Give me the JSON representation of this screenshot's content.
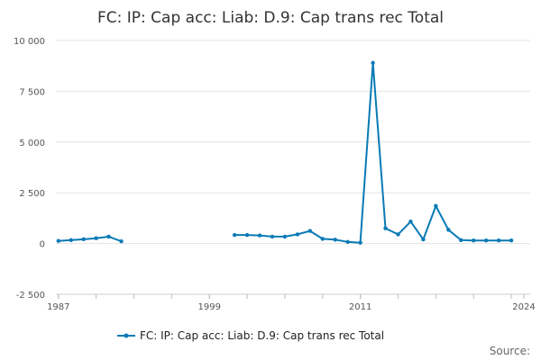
{
  "chart_data": {
    "type": "line",
    "title": "FC: IP: Cap acc: Liab: D.9: Cap trans rec Total",
    "xlabel": "",
    "ylabel": "",
    "xlim": [
      1986.8,
      2024.5
    ],
    "ylim": [
      -2500,
      10000
    ],
    "yticks": [
      -2500,
      0,
      2500,
      5000,
      7500,
      10000
    ],
    "ytick_labels": [
      "-2 500",
      "0",
      "2 500",
      "5 000",
      "7 500",
      "10 000"
    ],
    "xticks": [
      1987,
      1999,
      2011,
      2024
    ],
    "xtick_labels": [
      "1987",
      "1999",
      "2011",
      "2024"
    ],
    "grid": "horizontal",
    "legend_position": "bottom",
    "series": [
      {
        "name": "FC: IP: Cap acc: Liab: D.9: Cap trans rec Total",
        "color": "#0a7ab6",
        "points": [
          [
            1987,
            130
          ],
          [
            1988,
            170
          ],
          [
            1989,
            210
          ],
          [
            1990,
            260
          ],
          [
            1991,
            340
          ],
          [
            1992,
            110
          ],
          [
            null,
            null
          ],
          [
            2001,
            420
          ],
          [
            2002,
            420
          ],
          [
            2003,
            400
          ],
          [
            2004,
            340
          ],
          [
            2005,
            340
          ],
          [
            2006,
            450
          ],
          [
            2007,
            620
          ],
          [
            2008,
            230
          ],
          [
            2009,
            190
          ],
          [
            2010,
            80
          ],
          [
            2011,
            40
          ],
          [
            2012,
            8900
          ],
          [
            2013,
            750
          ],
          [
            2014,
            450
          ],
          [
            2015,
            1080
          ],
          [
            2016,
            200
          ],
          [
            2017,
            1850
          ],
          [
            2018,
            680
          ],
          [
            2019,
            170
          ],
          [
            2020,
            150
          ],
          [
            2021,
            150
          ],
          [
            2022,
            150
          ],
          [
            2023,
            150
          ]
        ]
      }
    ],
    "source_label": "Source:"
  }
}
